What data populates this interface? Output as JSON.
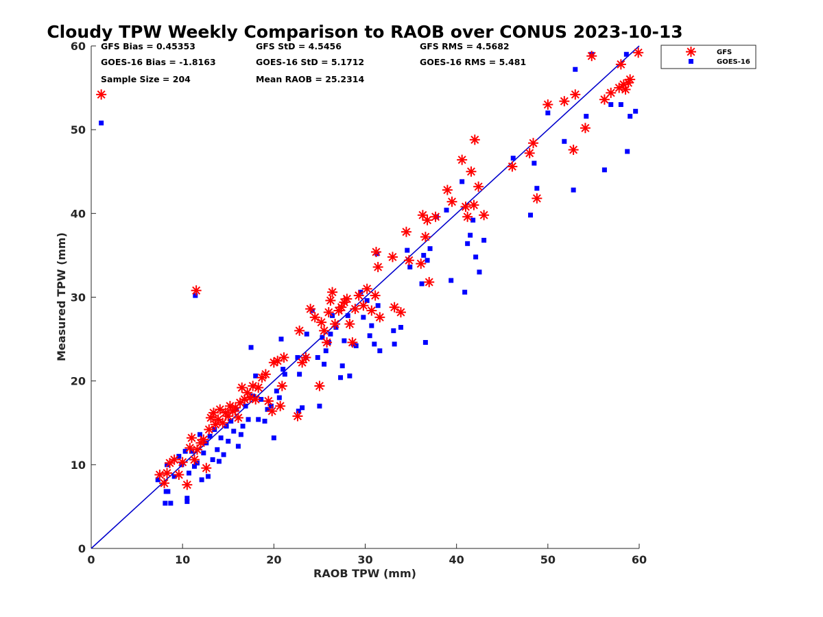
{
  "chart_data": {
    "type": "scatter",
    "title": "Cloudy TPW Weekly Comparison to RAOB over CONUS 2023-10-13",
    "xlabel": "RAOB TPW (mm)",
    "ylabel": "Measured TPW (mm)",
    "xlim": [
      0,
      60
    ],
    "ylim": [
      0,
      60
    ],
    "xticks": [
      "0",
      "10",
      "20",
      "30",
      "40",
      "50",
      "60"
    ],
    "yticks": [
      "0",
      "10",
      "20",
      "30",
      "40",
      "50",
      "60"
    ],
    "grid": false,
    "legend_position": "outside-top-right",
    "stats": {
      "gfs_bias": "GFS Bias = 0.45353",
      "goes_bias": "GOES-16 Bias = -1.8163",
      "sample_size": "Sample Size = 204",
      "gfs_std": "GFS StD = 4.5456",
      "goes_std": "GOES-16 StD = 5.1712",
      "mean_raob": "Mean RAOB = 25.2314",
      "gfs_rms": "GFS RMS = 4.5682",
      "goes_rms": "GOES-16 RMS = 5.481"
    },
    "reference_line": {
      "from": [
        0,
        0
      ],
      "to": [
        60,
        60
      ],
      "color": "#0000cc"
    },
    "series": [
      {
        "name": "GFS",
        "marker": "asterisk",
        "color": "#ff0000",
        "points": [
          [
            1.1,
            54.2
          ],
          [
            11.5,
            30.8
          ],
          [
            7.5,
            8.8
          ],
          [
            8.0,
            7.8
          ],
          [
            8.3,
            9.0
          ],
          [
            8.6,
            10.2
          ],
          [
            9.1,
            10.6
          ],
          [
            9.6,
            8.8
          ],
          [
            10.0,
            10.3
          ],
          [
            10.5,
            7.6
          ],
          [
            10.8,
            12.0
          ],
          [
            11.0,
            13.2
          ],
          [
            11.3,
            10.6
          ],
          [
            11.6,
            11.8
          ],
          [
            12.0,
            12.6
          ],
          [
            12.3,
            13.0
          ],
          [
            12.6,
            9.6
          ],
          [
            12.9,
            14.2
          ],
          [
            13.1,
            15.6
          ],
          [
            13.4,
            16.2
          ],
          [
            13.6,
            14.8
          ],
          [
            13.9,
            15.4
          ],
          [
            14.1,
            16.6
          ],
          [
            14.4,
            15.0
          ],
          [
            14.7,
            16.2
          ],
          [
            15.0,
            15.8
          ],
          [
            15.2,
            17.0
          ],
          [
            15.5,
            16.4
          ],
          [
            15.8,
            16.8
          ],
          [
            16.1,
            15.6
          ],
          [
            16.3,
            17.4
          ],
          [
            16.5,
            19.2
          ],
          [
            16.8,
            17.8
          ],
          [
            17.1,
            18.6
          ],
          [
            17.4,
            18.0
          ],
          [
            17.7,
            19.4
          ],
          [
            18.0,
            17.8
          ],
          [
            18.3,
            19.2
          ],
          [
            18.7,
            20.4
          ],
          [
            19.1,
            20.8
          ],
          [
            19.4,
            17.6
          ],
          [
            19.8,
            16.4
          ],
          [
            20.0,
            22.2
          ],
          [
            20.4,
            22.4
          ],
          [
            20.7,
            17.0
          ],
          [
            20.9,
            19.4
          ],
          [
            21.1,
            22.8
          ],
          [
            22.6,
            15.8
          ],
          [
            22.8,
            26.0
          ],
          [
            23.1,
            22.2
          ],
          [
            23.5,
            22.8
          ],
          [
            24.0,
            28.6
          ],
          [
            24.5,
            27.6
          ],
          [
            25.0,
            19.4
          ],
          [
            25.2,
            27.0
          ],
          [
            25.5,
            26.0
          ],
          [
            25.8,
            24.6
          ],
          [
            26.0,
            28.2
          ],
          [
            26.2,
            29.6
          ],
          [
            26.4,
            30.6
          ],
          [
            26.7,
            26.8
          ],
          [
            27.1,
            28.4
          ],
          [
            27.4,
            28.8
          ],
          [
            27.7,
            29.4
          ],
          [
            28.0,
            29.8
          ],
          [
            28.3,
            26.8
          ],
          [
            28.6,
            24.6
          ],
          [
            28.9,
            28.6
          ],
          [
            29.3,
            30.2
          ],
          [
            29.8,
            29.0
          ],
          [
            30.2,
            31.0
          ],
          [
            30.7,
            28.4
          ],
          [
            31.1,
            30.2
          ],
          [
            31.2,
            35.4
          ],
          [
            31.4,
            33.6
          ],
          [
            31.6,
            27.6
          ],
          [
            33.0,
            34.8
          ],
          [
            33.2,
            28.8
          ],
          [
            33.9,
            28.2
          ],
          [
            34.5,
            37.8
          ],
          [
            34.8,
            34.4
          ],
          [
            36.1,
            34.0
          ],
          [
            36.3,
            39.8
          ],
          [
            36.6,
            37.2
          ],
          [
            36.8,
            39.2
          ],
          [
            37.0,
            31.8
          ],
          [
            37.7,
            39.6
          ],
          [
            39.0,
            42.8
          ],
          [
            39.5,
            41.4
          ],
          [
            40.6,
            46.4
          ],
          [
            41.0,
            40.8
          ],
          [
            41.2,
            39.6
          ],
          [
            41.6,
            45.0
          ],
          [
            41.9,
            41.0
          ],
          [
            42.0,
            48.8
          ],
          [
            42.4,
            43.2
          ],
          [
            43.0,
            39.8
          ],
          [
            46.1,
            45.6
          ],
          [
            48.0,
            47.2
          ],
          [
            48.4,
            48.4
          ],
          [
            48.8,
            41.8
          ],
          [
            50.0,
            53.0
          ],
          [
            51.8,
            53.4
          ],
          [
            52.8,
            47.6
          ],
          [
            53.0,
            54.2
          ],
          [
            54.1,
            50.2
          ],
          [
            54.8,
            58.8
          ],
          [
            56.2,
            53.6
          ],
          [
            56.9,
            54.4
          ],
          [
            57.8,
            55.0
          ],
          [
            58.0,
            57.8
          ],
          [
            58.3,
            55.4
          ],
          [
            58.5,
            54.8
          ],
          [
            58.8,
            55.6
          ],
          [
            59.0,
            56.0
          ],
          [
            59.9,
            59.2
          ]
        ]
      },
      {
        "name": "GOES-16",
        "marker": "square",
        "color": "#0000ff",
        "points": [
          [
            1.1,
            50.8
          ],
          [
            11.4,
            30.2
          ],
          [
            7.3,
            8.2
          ],
          [
            8.1,
            5.4
          ],
          [
            8.2,
            6.8
          ],
          [
            8.4,
            6.8
          ],
          [
            8.7,
            5.4
          ],
          [
            8.3,
            10.0
          ],
          [
            9.1,
            8.6
          ],
          [
            9.6,
            11.0
          ],
          [
            9.9,
            10.0
          ],
          [
            10.3,
            11.6
          ],
          [
            10.5,
            5.6
          ],
          [
            10.5,
            6.0
          ],
          [
            10.7,
            9.0
          ],
          [
            11.0,
            11.6
          ],
          [
            11.3,
            9.8
          ],
          [
            11.6,
            10.2
          ],
          [
            11.9,
            13.6
          ],
          [
            12.1,
            8.2
          ],
          [
            12.3,
            11.4
          ],
          [
            12.6,
            12.6
          ],
          [
            12.8,
            8.6
          ],
          [
            13.0,
            13.4
          ],
          [
            13.3,
            10.6
          ],
          [
            13.5,
            14.2
          ],
          [
            13.8,
            11.8
          ],
          [
            14.0,
            10.4
          ],
          [
            14.2,
            13.2
          ],
          [
            14.5,
            11.2
          ],
          [
            14.8,
            14.6
          ],
          [
            15.0,
            12.8
          ],
          [
            15.3,
            15.2
          ],
          [
            15.6,
            14.0
          ],
          [
            15.9,
            16.6
          ],
          [
            16.1,
            12.2
          ],
          [
            16.4,
            13.6
          ],
          [
            16.6,
            14.6
          ],
          [
            16.9,
            17.0
          ],
          [
            17.2,
            15.4
          ],
          [
            17.5,
            24.0
          ],
          [
            17.7,
            18.2
          ],
          [
            18.0,
            20.6
          ],
          [
            18.3,
            15.4
          ],
          [
            18.6,
            17.8
          ],
          [
            19.0,
            15.2
          ],
          [
            19.3,
            16.6
          ],
          [
            19.7,
            17.0
          ],
          [
            20.0,
            13.2
          ],
          [
            20.3,
            18.8
          ],
          [
            20.6,
            18.0
          ],
          [
            20.8,
            25.0
          ],
          [
            21.0,
            21.4
          ],
          [
            21.2,
            20.8
          ],
          [
            22.6,
            22.8
          ],
          [
            22.7,
            16.4
          ],
          [
            22.8,
            20.8
          ],
          [
            23.1,
            16.8
          ],
          [
            23.5,
            22.8
          ],
          [
            23.6,
            25.6
          ],
          [
            24.2,
            28.4
          ],
          [
            24.8,
            22.8
          ],
          [
            25.0,
            17.0
          ],
          [
            25.3,
            25.2
          ],
          [
            25.5,
            22.0
          ],
          [
            25.7,
            23.6
          ],
          [
            26.0,
            24.6
          ],
          [
            26.2,
            25.6
          ],
          [
            26.4,
            27.8
          ],
          [
            26.8,
            26.4
          ],
          [
            27.3,
            20.4
          ],
          [
            27.5,
            21.8
          ],
          [
            27.7,
            24.8
          ],
          [
            28.1,
            27.8
          ],
          [
            28.3,
            20.6
          ],
          [
            28.7,
            24.4
          ],
          [
            29.0,
            24.2
          ],
          [
            29.5,
            30.6
          ],
          [
            29.8,
            27.6
          ],
          [
            30.2,
            29.6
          ],
          [
            30.5,
            25.4
          ],
          [
            30.7,
            26.6
          ],
          [
            31.0,
            24.4
          ],
          [
            31.3,
            35.2
          ],
          [
            31.4,
            29.0
          ],
          [
            31.6,
            23.6
          ],
          [
            33.1,
            26.0
          ],
          [
            33.2,
            24.4
          ],
          [
            33.9,
            26.4
          ],
          [
            34.6,
            35.6
          ],
          [
            34.9,
            33.6
          ],
          [
            36.2,
            31.6
          ],
          [
            36.4,
            35.0
          ],
          [
            36.6,
            24.6
          ],
          [
            36.8,
            34.4
          ],
          [
            37.1,
            35.8
          ],
          [
            37.8,
            39.6
          ],
          [
            38.9,
            40.4
          ],
          [
            39.4,
            32.0
          ],
          [
            40.6,
            43.8
          ],
          [
            40.9,
            30.6
          ],
          [
            41.2,
            36.4
          ],
          [
            41.5,
            37.4
          ],
          [
            41.8,
            39.2
          ],
          [
            42.1,
            34.8
          ],
          [
            42.5,
            33.0
          ],
          [
            43.0,
            36.8
          ],
          [
            46.2,
            46.6
          ],
          [
            48.1,
            39.8
          ],
          [
            48.5,
            46.0
          ],
          [
            48.8,
            43.0
          ],
          [
            50.0,
            52.0
          ],
          [
            51.8,
            48.6
          ],
          [
            52.8,
            42.8
          ],
          [
            53.0,
            57.2
          ],
          [
            54.2,
            51.6
          ],
          [
            54.8,
            59.0
          ],
          [
            56.2,
            45.2
          ],
          [
            56.9,
            53.0
          ],
          [
            58.0,
            53.0
          ],
          [
            58.6,
            59.0
          ],
          [
            58.7,
            47.4
          ],
          [
            59.0,
            51.6
          ],
          [
            59.6,
            52.2
          ]
        ]
      }
    ]
  }
}
